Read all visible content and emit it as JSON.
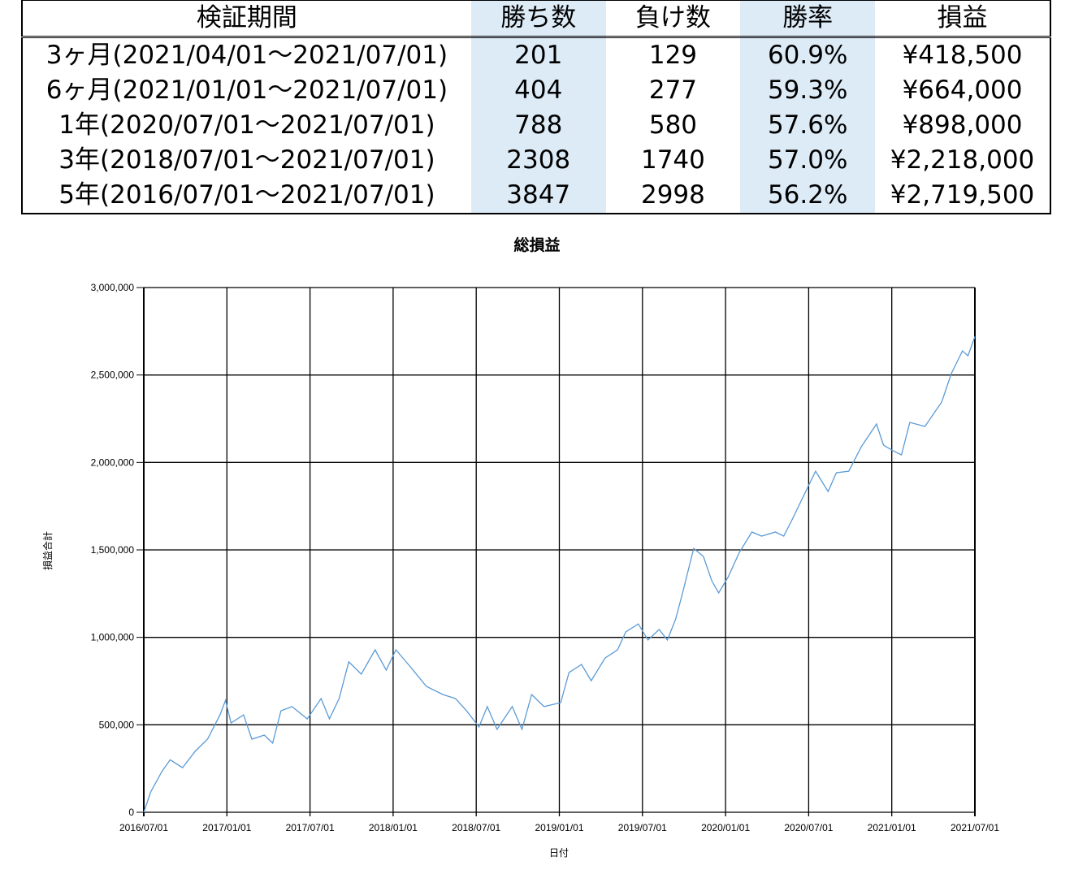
{
  "table": {
    "headers": [
      "検証期間",
      "勝ち数",
      "負け数",
      "勝率",
      "損益"
    ],
    "rows": [
      [
        "3ヶ月(2021/04/01～2021/07/01)",
        "201",
        "129",
        "60.9%",
        "¥418,500"
      ],
      [
        "6ヶ月(2021/01/01～2021/07/01)",
        "404",
        "277",
        "59.3%",
        "¥664,000"
      ],
      [
        "1年(2020/07/01～2021/07/01)",
        "788",
        "580",
        "57.6%",
        "¥898,000"
      ],
      [
        "3年(2018/07/01～2021/07/01)",
        "2308",
        "1740",
        "57.0%",
        "¥2,218,000"
      ],
      [
        "5年(2016/07/01～2021/07/01)",
        "3847",
        "2998",
        "56.2%",
        "¥2,719,500"
      ]
    ]
  },
  "chart_data": {
    "type": "line",
    "title": "総損益",
    "xlabel": "日付",
    "ylabel": "損益合計",
    "ylim": [
      0,
      3000000
    ],
    "yticks": [
      0,
      500000,
      1000000,
      1500000,
      2000000,
      2500000,
      3000000
    ],
    "ytick_labels": [
      "0",
      "500,000",
      "1,000,000",
      "1,500,000",
      "2,000,000",
      "2,500,000",
      "3,000,000"
    ],
    "xlim_months_since_2016_07": [
      0,
      60
    ],
    "xtick_labels": [
      "2016/07/01",
      "2017/01/01",
      "2017/07/01",
      "2018/01/01",
      "2018/07/01",
      "2019/01/01",
      "2019/07/01",
      "2020/01/01",
      "2020/07/01",
      "2021/01/01",
      "2021/07/01"
    ],
    "grid": true,
    "line_color": "#5b9bd5",
    "series": [
      {
        "name": "総損益",
        "x_months": [
          0,
          0.5,
          1.3,
          1.9,
          2.8,
          3.7,
          4.6,
          5.5,
          5.9,
          6.3,
          7.2,
          7.8,
          8.7,
          9.3,
          9.9,
          10.7,
          11.8,
          12.8,
          13.4,
          14.1,
          14.8,
          15.7,
          16.7,
          17.5,
          18.2,
          19.2,
          20.4,
          21.6,
          22.5,
          23.3,
          24.2,
          24.8,
          25.5,
          26.6,
          27.3,
          28.0,
          28.9,
          30.1,
          30.7,
          31.6,
          32.3,
          33.3,
          34.2,
          34.8,
          35.7,
          36.4,
          37.2,
          37.8,
          38.4,
          38.9,
          39.7,
          40.4,
          41.0,
          41.5,
          42.2,
          43.0,
          43.9,
          44.6,
          45.6,
          46.2,
          46.8,
          47.7,
          48.5,
          49.4,
          50.0,
          50.9,
          51.8,
          52.9,
          53.4,
          54.1,
          54.7,
          55.3,
          56.4,
          57.0,
          57.6,
          58.3,
          59.1,
          59.5,
          60
        ],
        "values": [
          0,
          116000,
          232000,
          300000,
          255000,
          348000,
          418000,
          557000,
          640000,
          511000,
          557000,
          418000,
          441000,
          395000,
          580000,
          604000,
          534000,
          650000,
          534000,
          650000,
          860000,
          790000,
          929000,
          813000,
          929000,
          836000,
          720000,
          673000,
          650000,
          580000,
          488000,
          604000,
          474000,
          604000,
          474000,
          673000,
          604000,
          627000,
          799000,
          845000,
          752000,
          882000,
          929000,
          1031000,
          1077000,
          985000,
          1045000,
          985000,
          1105000,
          1254000,
          1509000,
          1463000,
          1324000,
          1254000,
          1347000,
          1486000,
          1602000,
          1579000,
          1602000,
          1579000,
          1672000,
          1820000,
          1950000,
          1834000,
          1941000,
          1950000,
          2090000,
          2220000,
          2099000,
          2067000,
          2043000,
          2229000,
          2206000,
          2276000,
          2345000,
          2508000,
          2638000,
          2610000,
          2719500
        ]
      }
    ]
  }
}
